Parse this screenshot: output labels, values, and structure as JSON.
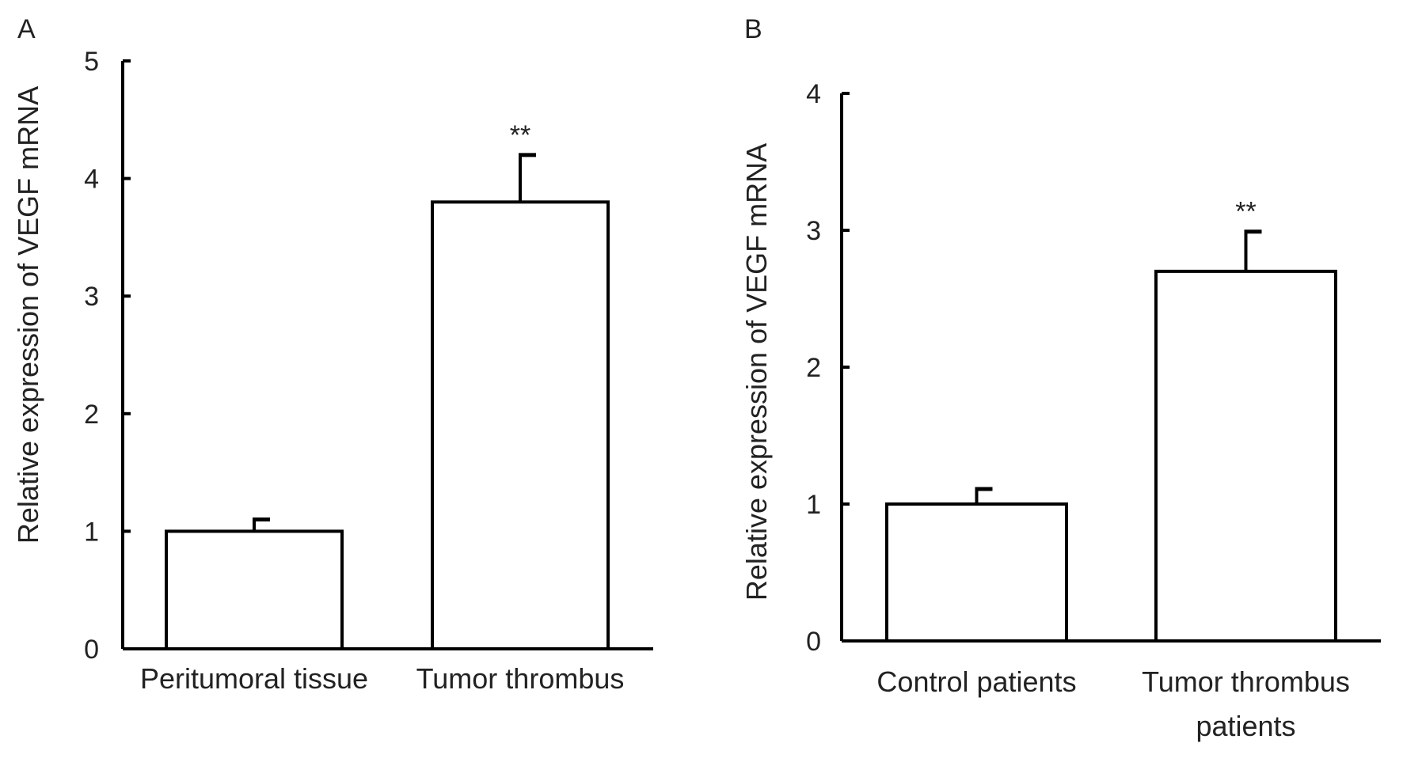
{
  "chart_data": [
    {
      "panel": "A",
      "type": "bar",
      "ylabel": "Relative expression of VEGF mRNA",
      "ylim": [
        0,
        5
      ],
      "yticks": [
        "0",
        "1",
        "2",
        "3",
        "4",
        "5"
      ],
      "categories": [
        "Peritumoral tissue",
        "Tumor thrombus"
      ],
      "values": [
        1.0,
        3.8
      ],
      "error_bars": [
        0.1,
        0.4
      ],
      "significance": [
        "",
        "**"
      ],
      "grid": false,
      "bar_color": "#ffffff",
      "line_color": "#000000"
    },
    {
      "panel": "B",
      "type": "bar",
      "ylabel": "Relative expression of VEGF mRNA",
      "ylim": [
        0,
        4
      ],
      "yticks": [
        "0",
        "1",
        "2",
        "3",
        "4"
      ],
      "categories": [
        "Control patients",
        "Tumor thrombus patients"
      ],
      "category_lines": [
        [
          "Control patients"
        ],
        [
          "Tumor thrombus",
          "patients"
        ]
      ],
      "values": [
        1.0,
        2.7
      ],
      "error_bars": [
        0.11,
        0.29
      ],
      "significance": [
        "",
        "**"
      ],
      "grid": false,
      "bar_color": "#ffffff",
      "line_color": "#000000"
    }
  ]
}
